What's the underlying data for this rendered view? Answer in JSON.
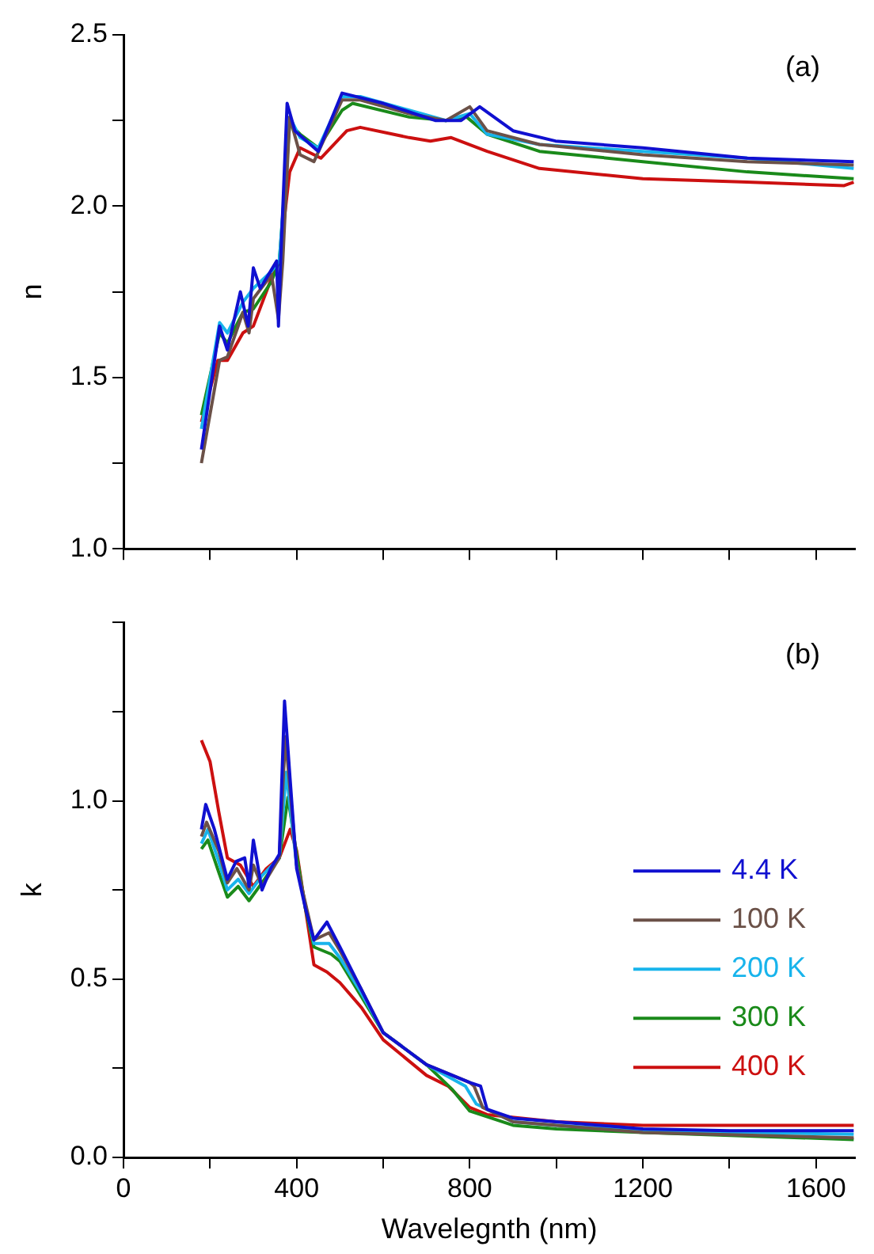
{
  "chart_data": [
    {
      "type": "line",
      "ylabel": "n",
      "annotations": [
        "(a)"
      ],
      "xlim": [
        0,
        1690
      ],
      "ylim": [
        1,
        2.5
      ],
      "xticks": [
        {
          "value": 0,
          "label": null
        },
        {
          "value": 200,
          "label": null
        },
        {
          "value": 400,
          "label": null
        },
        {
          "value": 600,
          "label": null
        },
        {
          "value": 800,
          "label": null
        },
        {
          "value": 1000,
          "label": null
        },
        {
          "value": 1200,
          "label": null
        },
        {
          "value": 1400,
          "label": null
        },
        {
          "value": 1600,
          "label": null
        }
      ],
      "yticks": [
        {
          "value": 1,
          "label": "1.0"
        },
        {
          "value": 1.25,
          "label": null
        },
        {
          "value": 1.5,
          "label": "1.5"
        },
        {
          "value": 1.75,
          "label": null
        },
        {
          "value": 2,
          "label": "2.0"
        },
        {
          "value": 2.25,
          "label": null
        },
        {
          "value": 2.5,
          "label": "2.5"
        }
      ],
      "tick_labels": "y",
      "grid": false,
      "legend": false,
      "marker": "none",
      "line_style": "solid",
      "series": [
        {
          "color": "#1010d0",
          "x": [
            180,
            222,
            240,
            270,
            288,
            300,
            316,
            354,
            358,
            363,
            378,
            396,
            450,
            505,
            600,
            720,
            780,
            823,
            900,
            998,
            1200,
            1441,
            1687
          ],
          "values": [
            1.29,
            1.65,
            1.58,
            1.75,
            1.65,
            1.82,
            1.76,
            1.84,
            1.65,
            1.84,
            2.3,
            2.22,
            2.16,
            2.33,
            2.3,
            2.25,
            2.25,
            2.29,
            2.22,
            2.19,
            2.17,
            2.14,
            2.13
          ]
        },
        {
          "color": "#6b5148",
          "x": [
            180,
            222,
            240,
            276,
            290,
            300,
            342,
            358,
            368,
            384,
            408,
            440,
            505,
            547,
            660,
            745,
            800,
            840,
            961,
            1200,
            1441,
            1687
          ],
          "values": [
            1.25,
            1.55,
            1.56,
            1.69,
            1.63,
            1.73,
            1.8,
            1.67,
            1.84,
            2.26,
            2.15,
            2.13,
            2.31,
            2.31,
            2.27,
            2.25,
            2.29,
            2.22,
            2.18,
            2.15,
            2.13,
            2.12
          ]
        },
        {
          "color": "#18b4ec",
          "x": [
            180,
            222,
            240,
            276,
            300,
            342,
            360,
            384,
            408,
            450,
            505,
            547,
            660,
            745,
            800,
            840,
            961,
            1200,
            1441,
            1687
          ],
          "values": [
            1.35,
            1.66,
            1.63,
            1.72,
            1.76,
            1.81,
            1.84,
            2.26,
            2.2,
            2.17,
            2.32,
            2.32,
            2.28,
            2.25,
            2.27,
            2.21,
            2.18,
            2.16,
            2.14,
            2.11
          ]
        },
        {
          "color": "#1a8a1a",
          "x": [
            180,
            222,
            240,
            276,
            300,
            342,
            360,
            384,
            408,
            450,
            505,
            529,
            660,
            745,
            793,
            840,
            961,
            1200,
            1441,
            1687
          ],
          "values": [
            1.39,
            1.63,
            1.6,
            1.69,
            1.7,
            1.78,
            1.84,
            2.24,
            2.21,
            2.17,
            2.28,
            2.3,
            2.26,
            2.25,
            2.26,
            2.21,
            2.16,
            2.13,
            2.1,
            2.08
          ]
        },
        {
          "color": "#cc1010",
          "x": [
            180,
            218,
            240,
            276,
            300,
            342,
            360,
            384,
            408,
            456,
            516,
            547,
            660,
            709,
            757,
            840,
            961,
            1200,
            1441,
            1665,
            1687
          ],
          "values": [
            1.37,
            1.55,
            1.55,
            1.63,
            1.65,
            1.79,
            1.84,
            2.1,
            2.17,
            2.14,
            2.22,
            2.23,
            2.2,
            2.19,
            2.2,
            2.16,
            2.11,
            2.08,
            2.07,
            2.06,
            2.07
          ]
        }
      ]
    },
    {
      "type": "line",
      "xlabel": "Wavelegnth (nm)",
      "ylabel": "k",
      "annotations": [
        "(b)"
      ],
      "xlim": [
        0,
        1690
      ],
      "ylim": [
        0,
        1.5
      ],
      "xticks": [
        0,
        {
          "value": 200,
          "label": null
        },
        400,
        {
          "value": 600,
          "label": null
        },
        800,
        {
          "value": 1000,
          "label": null
        },
        1200,
        {
          "value": 1400,
          "label": null
        },
        1600
      ],
      "yticks": [
        {
          "value": 0,
          "label": "0.0"
        },
        {
          "value": 0.25,
          "label": null
        },
        {
          "value": 0.5,
          "label": "0.5"
        },
        {
          "value": 0.75,
          "label": null
        },
        {
          "value": 1,
          "label": "1.0"
        },
        {
          "value": 1.25,
          "label": null
        },
        {
          "value": 1.5,
          "label": null
        }
      ],
      "grid": false,
      "legend": "right",
      "marker": "none",
      "line_style": "solid",
      "series": [
        {
          "name": "4.4 K",
          "color": "#1010d0",
          "x": [
            180,
            190,
            210,
            240,
            260,
            280,
            290,
            300,
            320,
            340,
            360,
            372,
            385,
            400,
            420,
            440,
            470,
            500,
            550,
            600,
            700,
            800,
            825,
            840,
            900,
            1000,
            1200,
            1400,
            1687
          ],
          "values": [
            0.92,
            0.99,
            0.92,
            0.78,
            0.83,
            0.84,
            0.76,
            0.89,
            0.75,
            0.81,
            0.85,
            1.28,
            1.06,
            0.81,
            0.7,
            0.61,
            0.66,
            0.59,
            0.47,
            0.35,
            0.26,
            0.21,
            0.2,
            0.135,
            0.11,
            0.1,
            0.08,
            0.075,
            0.075
          ]
        },
        {
          "name": "100 K",
          "color": "#6b5148",
          "x": [
            180,
            192,
            220,
            240,
            262,
            290,
            300,
            320,
            360,
            374,
            400,
            440,
            475,
            500,
            550,
            600,
            700,
            800,
            810,
            830,
            900,
            1000,
            1200,
            1687
          ],
          "values": [
            0.9,
            0.94,
            0.86,
            0.77,
            0.81,
            0.75,
            0.82,
            0.76,
            0.84,
            1.18,
            0.82,
            0.61,
            0.63,
            0.58,
            0.47,
            0.35,
            0.26,
            0.21,
            0.2,
            0.14,
            0.1,
            0.09,
            0.07,
            0.055
          ]
        },
        {
          "name": "200 K",
          "color": "#18b4ec",
          "x": [
            180,
            195,
            220,
            240,
            265,
            290,
            320,
            360,
            376,
            400,
            440,
            475,
            500,
            550,
            600,
            700,
            790,
            815,
            900,
            1000,
            1200,
            1687
          ],
          "values": [
            0.88,
            0.92,
            0.83,
            0.75,
            0.78,
            0.74,
            0.79,
            0.84,
            1.08,
            0.82,
            0.6,
            0.6,
            0.56,
            0.46,
            0.35,
            0.26,
            0.2,
            0.15,
            0.1,
            0.09,
            0.075,
            0.065
          ]
        },
        {
          "name": "300 K",
          "color": "#1a8a1a",
          "x": [
            180,
            195,
            220,
            240,
            265,
            290,
            320,
            360,
            380,
            400,
            420,
            440,
            480,
            500,
            550,
            600,
            700,
            760,
            800,
            900,
            1000,
            1200,
            1687
          ],
          "values": [
            0.865,
            0.89,
            0.8,
            0.73,
            0.76,
            0.72,
            0.77,
            0.84,
            1.01,
            0.85,
            0.7,
            0.59,
            0.57,
            0.55,
            0.45,
            0.35,
            0.26,
            0.19,
            0.13,
            0.09,
            0.08,
            0.07,
            0.05
          ]
        },
        {
          "name": "400 K",
          "color": "#cc1010",
          "x": [
            180,
            200,
            220,
            240,
            270,
            300,
            330,
            360,
            385,
            400,
            440,
            470,
            500,
            550,
            600,
            700,
            750,
            800,
            840,
            1000,
            1200,
            1687
          ],
          "values": [
            1.17,
            1.11,
            0.97,
            0.84,
            0.82,
            0.76,
            0.81,
            0.84,
            0.92,
            0.86,
            0.54,
            0.52,
            0.49,
            0.42,
            0.33,
            0.23,
            0.2,
            0.14,
            0.12,
            0.1,
            0.09,
            0.09
          ]
        }
      ]
    }
  ]
}
